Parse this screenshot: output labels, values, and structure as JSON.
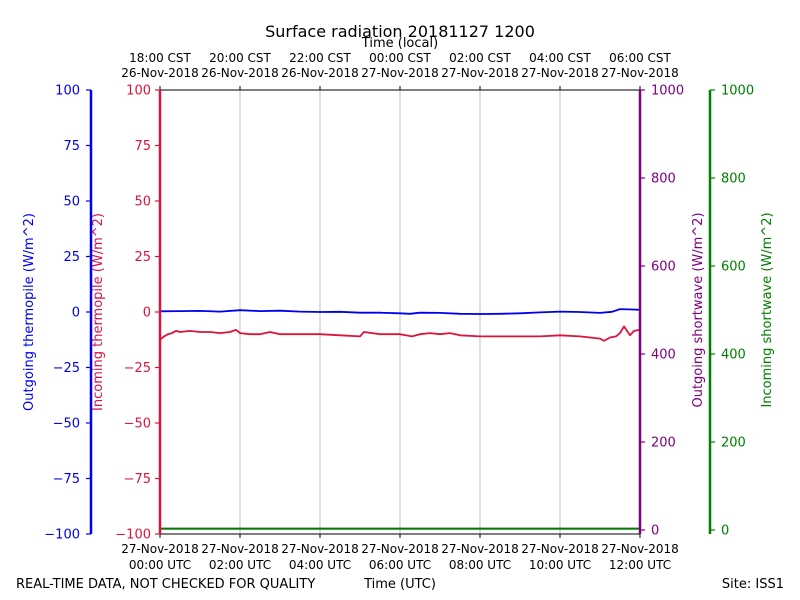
{
  "chart_data": {
    "type": "line",
    "title": "Surface radiation 20181127 1200",
    "top_axis_label": "Time (local)",
    "xlabel": "Time (UTC)",
    "footer_left": "REAL-TIME DATA, NOT CHECKED FOR QUALITY",
    "footer_right": "Site: ISS1",
    "x_range_hours": [
      0,
      12
    ],
    "x_ticks_utc": [
      {
        "hour": 0,
        "date": "27-Nov-2018",
        "time": "00:00 UTC"
      },
      {
        "hour": 2,
        "date": "27-Nov-2018",
        "time": "02:00 UTC"
      },
      {
        "hour": 4,
        "date": "27-Nov-2018",
        "time": "04:00 UTC"
      },
      {
        "hour": 6,
        "date": "27-Nov-2018",
        "time": "06:00 UTC"
      },
      {
        "hour": 8,
        "date": "27-Nov-2018",
        "time": "08:00 UTC"
      },
      {
        "hour": 10,
        "date": "27-Nov-2018",
        "time": "10:00 UTC"
      },
      {
        "hour": 12,
        "date": "27-Nov-2018",
        "time": "12:00 UTC"
      }
    ],
    "x_ticks_local": [
      {
        "hour": 0,
        "time": "18:00 CST",
        "date": "26-Nov-2018"
      },
      {
        "hour": 2,
        "time": "20:00 CST",
        "date": "26-Nov-2018"
      },
      {
        "hour": 4,
        "time": "22:00 CST",
        "date": "26-Nov-2018"
      },
      {
        "hour": 6,
        "time": "00:00 CST",
        "date": "27-Nov-2018"
      },
      {
        "hour": 8,
        "time": "02:00 CST",
        "date": "27-Nov-2018"
      },
      {
        "hour": 10,
        "time": "04:00 CST",
        "date": "27-Nov-2018"
      },
      {
        "hour": 12,
        "time": "06:00 CST",
        "date": "27-Nov-2018"
      }
    ],
    "axes": [
      {
        "id": "outgoing_thermopile",
        "label": "Outgoing thermopile (W/m^2)",
        "color": "#0000ee",
        "ylim": [
          -100,
          100
        ],
        "ticks": [
          100,
          75,
          50,
          25,
          0,
          -25,
          -50,
          -75,
          -100
        ]
      },
      {
        "id": "incoming_thermopile",
        "label": "Incoming thermopile (W/m^2)",
        "color": "#dc143c",
        "ylim": [
          -100,
          100
        ],
        "ticks": [
          100,
          75,
          50,
          25,
          0,
          -25,
          -50,
          -75,
          -100
        ]
      },
      {
        "id": "outgoing_shortwave",
        "label": "Outgoing shortwave (W/m^2)",
        "color": "#800080",
        "ylim": [
          0,
          1000
        ],
        "ticks": [
          0,
          200,
          400,
          600,
          800,
          1000
        ]
      },
      {
        "id": "incoming_shortwave",
        "label": "Incoming shortwave (W/m^2)",
        "color": "#008000",
        "ylim": [
          0,
          1000
        ],
        "ticks": [
          0,
          200,
          400,
          600,
          800,
          1000
        ]
      }
    ],
    "grid": "vertical",
    "series": [
      {
        "name": "Outgoing thermopile",
        "axis": "outgoing_thermopile",
        "color": "#0000ee",
        "x": [
          0,
          0.5,
          1,
          1.5,
          2,
          2.5,
          3,
          3.5,
          4,
          4.5,
          5,
          5.5,
          6,
          6.25,
          6.5,
          7,
          7.5,
          8,
          8.5,
          9,
          9.5,
          10,
          10.5,
          11,
          11.3,
          11.5,
          12
        ],
        "y": [
          0.3,
          0.4,
          0.5,
          0.2,
          0.8,
          0.4,
          0.6,
          0.2,
          0.0,
          0.1,
          -0.3,
          -0.3,
          -0.6,
          -0.8,
          -0.3,
          -0.4,
          -0.8,
          -0.9,
          -0.8,
          -0.6,
          -0.2,
          0.2,
          0.0,
          -0.4,
          0.1,
          1.3,
          1.0
        ]
      },
      {
        "name": "Incoming thermopile",
        "axis": "incoming_thermopile",
        "color": "#dc143c",
        "x": [
          0,
          0.1,
          0.2,
          0.3,
          0.4,
          0.5,
          0.75,
          1,
          1.25,
          1.5,
          1.75,
          1.9,
          2,
          2.25,
          2.5,
          2.75,
          3,
          3.5,
          4,
          4.5,
          5,
          5.1,
          5.5,
          6,
          6.3,
          6.5,
          6.75,
          7,
          7.25,
          7.5,
          8,
          8.5,
          9,
          9.5,
          10,
          10.5,
          11,
          11.1,
          11.25,
          11.4,
          11.5,
          11.6,
          11.75,
          11.85,
          12
        ],
        "y": [
          -12.5,
          -11,
          -10,
          -9.5,
          -8.5,
          -9,
          -8.5,
          -9,
          -9,
          -9.5,
          -9,
          -8,
          -9.5,
          -10,
          -10,
          -9,
          -10,
          -10,
          -10,
          -10.5,
          -11,
          -9,
          -10,
          -10,
          -11,
          -10,
          -9.5,
          -10,
          -9.5,
          -10.5,
          -11,
          -11,
          -11,
          -11,
          -10.5,
          -11,
          -12,
          -13,
          -11.5,
          -11,
          -9.5,
          -6.5,
          -10.5,
          -8.5,
          -8
        ]
      },
      {
        "name": "Outgoing shortwave",
        "axis": "outgoing_shortwave",
        "color": "#800080",
        "x": [
          0,
          12
        ],
        "y": [
          3,
          3
        ]
      },
      {
        "name": "Incoming shortwave",
        "axis": "incoming_shortwave",
        "color": "#008000",
        "x": [
          0,
          12
        ],
        "y": [
          3,
          3
        ]
      }
    ]
  }
}
